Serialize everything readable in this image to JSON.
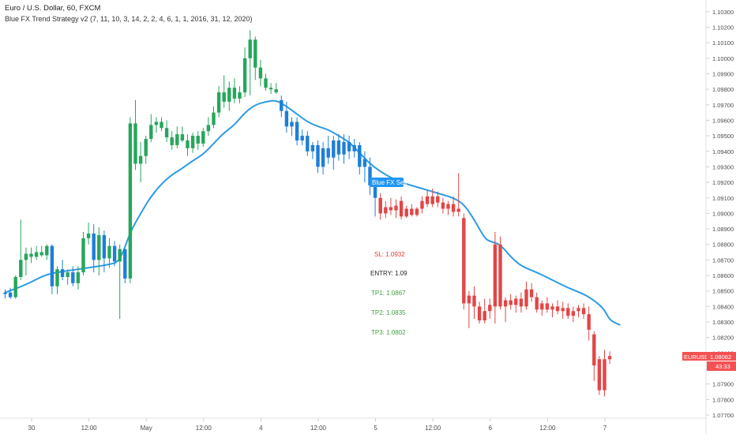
{
  "header": {
    "symbol_title": "Euro / U.S. Dollar, 60, FXCM",
    "indicator_title": "Blue FX Trend Strategy v2 (7, 11, 10, 3, 14, 2, 2, 4, 6, 1, 1, 2016, 31, 12, 2020)"
  },
  "colors": {
    "up": "#26a65b",
    "bull_blue": "#1e7ed8",
    "down": "#e24646",
    "ma": "#2c9be4",
    "axis_text": "#4a4a4a",
    "grid_border": "#e0e3eb",
    "signal_bg": "#2196f3",
    "sl_text": "#e53935",
    "entry_text": "#222222",
    "tp_text": "#43a047",
    "price_tag": "#f25254"
  },
  "signal": {
    "label": "Blue FX Sell"
  },
  "levels": {
    "sl": "SL: 1.0932",
    "entry": "ENTRY: 1.09",
    "tp1": "TP1: 1.0867",
    "tp2": "TP2: 1.0835",
    "tp3": "TP3: 1.0802"
  },
  "price_tag": {
    "symbol": "EURUSD",
    "price": "1.08082",
    "countdown": "43:33"
  },
  "chart_data": {
    "type": "candlestick",
    "ylim": [
      1.077,
      1.1035
    ],
    "y_ticks": [
      "1.10300",
      "1.10200",
      "1.10100",
      "1.10000",
      "1.09900",
      "1.09800",
      "1.09700",
      "1.09600",
      "1.09500",
      "1.09400",
      "1.09300",
      "1.09200",
      "1.09100",
      "1.09000",
      "1.08900",
      "1.08800",
      "1.08700",
      "1.08600",
      "1.08500",
      "1.08400",
      "1.08300",
      "1.08200",
      "1.08100",
      "1.08000",
      "1.07900",
      "1.07800",
      "1.07700"
    ],
    "x_ticks": [
      {
        "i": 5,
        "label": "30"
      },
      {
        "i": 16,
        "label": "12:00"
      },
      {
        "i": 27,
        "label": "May"
      },
      {
        "i": 38,
        "label": "12:00"
      },
      {
        "i": 49,
        "label": "4"
      },
      {
        "i": 60,
        "label": "12:00"
      },
      {
        "i": 71,
        "label": "5"
      },
      {
        "i": 82,
        "label": "12:00"
      },
      {
        "i": 93,
        "label": "6"
      },
      {
        "i": 104,
        "label": "12:00"
      },
      {
        "i": 115,
        "label": "7"
      }
    ],
    "candles": [
      {
        "o": 1.0848,
        "h": 1.0851,
        "l": 1.0845,
        "c": 1.0849,
        "t": "b"
      },
      {
        "o": 1.0849,
        "h": 1.0852,
        "l": 1.0845,
        "c": 1.0846,
        "t": "b"
      },
      {
        "o": 1.0846,
        "h": 1.086,
        "l": 1.0845,
        "c": 1.0859,
        "t": "g"
      },
      {
        "o": 1.0859,
        "h": 1.0896,
        "l": 1.0857,
        "c": 1.087,
        "t": "g"
      },
      {
        "o": 1.087,
        "h": 1.0878,
        "l": 1.086,
        "c": 1.0874,
        "t": "g"
      },
      {
        "o": 1.0874,
        "h": 1.0878,
        "l": 1.0868,
        "c": 1.0872,
        "t": "g"
      },
      {
        "o": 1.0872,
        "h": 1.0879,
        "l": 1.087,
        "c": 1.0875,
        "t": "g"
      },
      {
        "o": 1.0875,
        "h": 1.0879,
        "l": 1.0872,
        "c": 1.0873,
        "t": "g"
      },
      {
        "o": 1.0873,
        "h": 1.088,
        "l": 1.087,
        "c": 1.0879,
        "t": "g"
      },
      {
        "o": 1.0879,
        "h": 1.088,
        "l": 1.0848,
        "c": 1.0853,
        "t": "b"
      },
      {
        "o": 1.0853,
        "h": 1.0866,
        "l": 1.0848,
        "c": 1.0864,
        "t": "g"
      },
      {
        "o": 1.0864,
        "h": 1.087,
        "l": 1.0857,
        "c": 1.0859,
        "t": "b"
      },
      {
        "o": 1.0859,
        "h": 1.0864,
        "l": 1.0854,
        "c": 1.0862,
        "t": "g"
      },
      {
        "o": 1.0862,
        "h": 1.0866,
        "l": 1.0853,
        "c": 1.0855,
        "t": "b"
      },
      {
        "o": 1.0855,
        "h": 1.0866,
        "l": 1.0851,
        "c": 1.0862,
        "t": "g"
      },
      {
        "o": 1.0862,
        "h": 1.0888,
        "l": 1.086,
        "c": 1.0884,
        "t": "g"
      },
      {
        "o": 1.0884,
        "h": 1.0894,
        "l": 1.088,
        "c": 1.0887,
        "t": "g"
      },
      {
        "o": 1.0887,
        "h": 1.0893,
        "l": 1.0862,
        "c": 1.087,
        "t": "b"
      },
      {
        "o": 1.087,
        "h": 1.0891,
        "l": 1.086,
        "c": 1.0886,
        "t": "g"
      },
      {
        "o": 1.0886,
        "h": 1.0889,
        "l": 1.0862,
        "c": 1.0871,
        "t": "b"
      },
      {
        "o": 1.0871,
        "h": 1.0884,
        "l": 1.0865,
        "c": 1.0879,
        "t": "g"
      },
      {
        "o": 1.0879,
        "h": 1.0882,
        "l": 1.0866,
        "c": 1.0869,
        "t": "b"
      },
      {
        "o": 1.0869,
        "h": 1.088,
        "l": 1.0832,
        "c": 1.0877,
        "t": "g"
      },
      {
        "o": 1.0877,
        "h": 1.0877,
        "l": 1.0855,
        "c": 1.0858,
        "t": "b"
      },
      {
        "o": 1.0858,
        "h": 1.0962,
        "l": 1.0855,
        "c": 1.0958,
        "t": "g"
      },
      {
        "o": 1.0958,
        "h": 1.0973,
        "l": 1.0928,
        "c": 1.0932,
        "t": "g"
      },
      {
        "o": 1.0932,
        "h": 1.0946,
        "l": 1.092,
        "c": 1.0937,
        "t": "g"
      },
      {
        "o": 1.0937,
        "h": 1.095,
        "l": 1.0932,
        "c": 1.0948,
        "t": "g"
      },
      {
        "o": 1.0948,
        "h": 1.0964,
        "l": 1.0946,
        "c": 1.0957,
        "t": "g"
      },
      {
        "o": 1.0957,
        "h": 1.0962,
        "l": 1.0952,
        "c": 1.0959,
        "t": "g"
      },
      {
        "o": 1.0959,
        "h": 1.0962,
        "l": 1.0953,
        "c": 1.0955,
        "t": "g"
      },
      {
        "o": 1.0955,
        "h": 1.096,
        "l": 1.0946,
        "c": 1.0949,
        "t": "g"
      },
      {
        "o": 1.0949,
        "h": 1.0953,
        "l": 1.0941,
        "c": 1.0944,
        "t": "g"
      },
      {
        "o": 1.0944,
        "h": 1.0956,
        "l": 1.0942,
        "c": 1.0951,
        "t": "g"
      },
      {
        "o": 1.0951,
        "h": 1.0956,
        "l": 1.0946,
        "c": 1.0947,
        "t": "g"
      },
      {
        "o": 1.0947,
        "h": 1.0951,
        "l": 1.0937,
        "c": 1.0942,
        "t": "g"
      },
      {
        "o": 1.0942,
        "h": 1.0952,
        "l": 1.0939,
        "c": 1.095,
        "t": "g"
      },
      {
        "o": 1.095,
        "h": 1.0953,
        "l": 1.0941,
        "c": 1.0945,
        "t": "g"
      },
      {
        "o": 1.0945,
        "h": 1.0955,
        "l": 1.0943,
        "c": 1.0953,
        "t": "g"
      },
      {
        "o": 1.0953,
        "h": 1.0962,
        "l": 1.095,
        "c": 1.0957,
        "t": "g"
      },
      {
        "o": 1.0957,
        "h": 1.0969,
        "l": 1.0955,
        "c": 1.0965,
        "t": "g"
      },
      {
        "o": 1.0965,
        "h": 1.0982,
        "l": 1.0962,
        "c": 1.0978,
        "t": "g"
      },
      {
        "o": 1.0978,
        "h": 1.0989,
        "l": 1.0968,
        "c": 1.0972,
        "t": "g"
      },
      {
        "o": 1.0972,
        "h": 1.0985,
        "l": 1.0966,
        "c": 1.0981,
        "t": "g"
      },
      {
        "o": 1.0981,
        "h": 1.0987,
        "l": 1.0971,
        "c": 1.0974,
        "t": "g"
      },
      {
        "o": 1.0974,
        "h": 1.0982,
        "l": 1.0971,
        "c": 1.0978,
        "t": "g"
      },
      {
        "o": 1.0978,
        "h": 1.1007,
        "l": 1.0975,
        "c": 1.1,
        "t": "g"
      },
      {
        "o": 1.1,
        "h": 1.1018,
        "l": 1.0976,
        "c": 1.1012,
        "t": "g"
      },
      {
        "o": 1.1012,
        "h": 1.1014,
        "l": 1.0986,
        "c": 1.0994,
        "t": "g"
      },
      {
        "o": 1.0994,
        "h": 1.0999,
        "l": 1.0982,
        "c": 1.0987,
        "t": "g"
      },
      {
        "o": 1.0987,
        "h": 1.099,
        "l": 1.0979,
        "c": 1.0981,
        "t": "g"
      },
      {
        "o": 1.0981,
        "h": 1.0984,
        "l": 1.0977,
        "c": 1.098,
        "t": "g"
      },
      {
        "o": 1.098,
        "h": 1.0984,
        "l": 1.0977,
        "c": 1.0978,
        "t": "g"
      },
      {
        "o": 1.0973,
        "h": 1.0976,
        "l": 1.0962,
        "c": 1.0966,
        "t": "b"
      },
      {
        "o": 1.0966,
        "h": 1.0972,
        "l": 1.0952,
        "c": 1.0956,
        "t": "b"
      },
      {
        "o": 1.0956,
        "h": 1.0962,
        "l": 1.095,
        "c": 1.0959,
        "t": "b"
      },
      {
        "o": 1.0959,
        "h": 1.0962,
        "l": 1.0944,
        "c": 1.0947,
        "t": "b"
      },
      {
        "o": 1.0947,
        "h": 1.0954,
        "l": 1.0944,
        "c": 1.095,
        "t": "b"
      },
      {
        "o": 1.095,
        "h": 1.0953,
        "l": 1.0937,
        "c": 1.094,
        "t": "b"
      },
      {
        "o": 1.094,
        "h": 1.0946,
        "l": 1.0935,
        "c": 1.0944,
        "t": "b"
      },
      {
        "o": 1.0944,
        "h": 1.0947,
        "l": 1.0926,
        "c": 1.093,
        "t": "b"
      },
      {
        "o": 1.093,
        "h": 1.0946,
        "l": 1.0925,
        "c": 1.0942,
        "t": "b"
      },
      {
        "o": 1.0942,
        "h": 1.095,
        "l": 1.0932,
        "c": 1.0936,
        "t": "b"
      },
      {
        "o": 1.0936,
        "h": 1.095,
        "l": 1.0928,
        "c": 1.0947,
        "t": "b"
      },
      {
        "o": 1.0947,
        "h": 1.0951,
        "l": 1.0934,
        "c": 1.0938,
        "t": "b"
      },
      {
        "o": 1.0938,
        "h": 1.0951,
        "l": 1.0932,
        "c": 1.0946,
        "t": "b"
      },
      {
        "o": 1.0946,
        "h": 1.095,
        "l": 1.0935,
        "c": 1.094,
        "t": "b"
      },
      {
        "o": 1.094,
        "h": 1.0948,
        "l": 1.0936,
        "c": 1.0944,
        "t": "b"
      },
      {
        "o": 1.0944,
        "h": 1.0946,
        "l": 1.0925,
        "c": 1.093,
        "t": "b"
      },
      {
        "o": 1.093,
        "h": 1.094,
        "l": 1.092,
        "c": 1.0935,
        "t": "b"
      },
      {
        "o": 1.093,
        "h": 1.0936,
        "l": 1.0912,
        "c": 1.0918,
        "t": "b"
      },
      {
        "o": 1.0918,
        "h": 1.0922,
        "l": 1.0898,
        "c": 1.091,
        "t": "b"
      },
      {
        "o": 1.091,
        "h": 1.0913,
        "l": 1.0896,
        "c": 1.09,
        "t": "r"
      },
      {
        "o": 1.09,
        "h": 1.0908,
        "l": 1.0897,
        "c": 1.0904,
        "t": "r"
      },
      {
        "o": 1.0904,
        "h": 1.091,
        "l": 1.0899,
        "c": 1.0902,
        "t": "r"
      },
      {
        "o": 1.0902,
        "h": 1.0909,
        "l": 1.0897,
        "c": 1.0905,
        "t": "r"
      },
      {
        "o": 1.0908,
        "h": 1.0911,
        "l": 1.0896,
        "c": 1.0898,
        "t": "r"
      },
      {
        "o": 1.0898,
        "h": 1.0905,
        "l": 1.0897,
        "c": 1.0903,
        "t": "r"
      },
      {
        "o": 1.0903,
        "h": 1.0906,
        "l": 1.0898,
        "c": 1.0899,
        "t": "r"
      },
      {
        "o": 1.0899,
        "h": 1.0904,
        "l": 1.0898,
        "c": 1.0903,
        "t": "r"
      },
      {
        "o": 1.0903,
        "h": 1.0911,
        "l": 1.09,
        "c": 1.0908,
        "t": "r"
      },
      {
        "o": 1.0911,
        "h": 1.0915,
        "l": 1.0904,
        "c": 1.0906,
        "t": "r"
      },
      {
        "o": 1.0906,
        "h": 1.0916,
        "l": 1.0904,
        "c": 1.0911,
        "t": "r"
      },
      {
        "o": 1.0911,
        "h": 1.0914,
        "l": 1.0904,
        "c": 1.0907,
        "t": "r"
      },
      {
        "o": 1.0907,
        "h": 1.091,
        "l": 1.09,
        "c": 1.0903,
        "t": "r"
      },
      {
        "o": 1.0903,
        "h": 1.0908,
        "l": 1.0899,
        "c": 1.0906,
        "t": "r"
      },
      {
        "o": 1.0906,
        "h": 1.0911,
        "l": 1.0898,
        "c": 1.0901,
        "t": "r"
      },
      {
        "o": 1.0901,
        "h": 1.0926,
        "l": 1.0898,
        "c": 1.0903,
        "t": "r"
      },
      {
        "o": 1.0897,
        "h": 1.09,
        "l": 1.0838,
        "c": 1.0842,
        "t": "r"
      },
      {
        "o": 1.0842,
        "h": 1.085,
        "l": 1.0826,
        "c": 1.0847,
        "t": "r"
      },
      {
        "o": 1.0847,
        "h": 1.0853,
        "l": 1.0832,
        "c": 1.084,
        "t": "r"
      },
      {
        "o": 1.084,
        "h": 1.0843,
        "l": 1.0829,
        "c": 1.0831,
        "t": "r"
      },
      {
        "o": 1.0831,
        "h": 1.0845,
        "l": 1.0829,
        "c": 1.0837,
        "t": "r"
      },
      {
        "o": 1.0837,
        "h": 1.0845,
        "l": 1.0832,
        "c": 1.0841,
        "t": "r"
      },
      {
        "o": 1.084,
        "h": 1.0888,
        "l": 1.0829,
        "c": 1.088,
        "t": "r"
      },
      {
        "o": 1.088,
        "h": 1.0885,
        "l": 1.0838,
        "c": 1.084,
        "t": "r"
      },
      {
        "o": 1.084,
        "h": 1.0846,
        "l": 1.083,
        "c": 1.0844,
        "t": "r"
      },
      {
        "o": 1.0844,
        "h": 1.0848,
        "l": 1.0838,
        "c": 1.0841,
        "t": "r"
      },
      {
        "o": 1.0841,
        "h": 1.0847,
        "l": 1.0836,
        "c": 1.0845,
        "t": "r"
      },
      {
        "o": 1.0845,
        "h": 1.0849,
        "l": 1.0836,
        "c": 1.084,
        "t": "r"
      },
      {
        "o": 1.084,
        "h": 1.0856,
        "l": 1.0838,
        "c": 1.0851,
        "t": "r"
      },
      {
        "o": 1.0851,
        "h": 1.0855,
        "l": 1.0843,
        "c": 1.0846,
        "t": "r"
      },
      {
        "o": 1.0846,
        "h": 1.0849,
        "l": 1.0836,
        "c": 1.0838,
        "t": "r"
      },
      {
        "o": 1.0838,
        "h": 1.0844,
        "l": 1.0834,
        "c": 1.0842,
        "t": "r"
      },
      {
        "o": 1.0842,
        "h": 1.0846,
        "l": 1.0836,
        "c": 1.0838,
        "t": "r"
      },
      {
        "o": 1.0838,
        "h": 1.0842,
        "l": 1.0833,
        "c": 1.084,
        "t": "r"
      },
      {
        "o": 1.084,
        "h": 1.0844,
        "l": 1.0835,
        "c": 1.0837,
        "t": "r"
      },
      {
        "o": 1.0837,
        "h": 1.0843,
        "l": 1.0832,
        "c": 1.0839,
        "t": "r"
      },
      {
        "o": 1.0839,
        "h": 1.0842,
        "l": 1.0832,
        "c": 1.0834,
        "t": "r"
      },
      {
        "o": 1.0834,
        "h": 1.084,
        "l": 1.083,
        "c": 1.0837,
        "t": "r"
      },
      {
        "o": 1.0837,
        "h": 1.0841,
        "l": 1.0833,
        "c": 1.0839,
        "t": "r"
      },
      {
        "o": 1.0839,
        "h": 1.0842,
        "l": 1.0832,
        "c": 1.0835,
        "t": "r"
      },
      {
        "o": 1.0835,
        "h": 1.084,
        "l": 1.0818,
        "c": 1.0825,
        "t": "r"
      },
      {
        "o": 1.0822,
        "h": 1.0824,
        "l": 1.0792,
        "c": 1.0802,
        "t": "r"
      },
      {
        "o": 1.0806,
        "h": 1.0808,
        "l": 1.0783,
        "c": 1.0786,
        "t": "r"
      },
      {
        "o": 1.0786,
        "h": 1.0812,
        "l": 1.0782,
        "c": 1.0806,
        "t": "r"
      },
      {
        "o": 1.0806,
        "h": 1.0811,
        "l": 1.0803,
        "c": 1.0808,
        "t": "r"
      }
    ],
    "ma_line": [
      {
        "i": 0,
        "v": 1.0849
      },
      {
        "i": 4,
        "v": 1.0854
      },
      {
        "i": 8,
        "v": 1.0861
      },
      {
        "i": 12,
        "v": 1.0863
      },
      {
        "i": 16,
        "v": 1.0865
      },
      {
        "i": 20,
        "v": 1.0867
      },
      {
        "i": 22,
        "v": 1.0869
      },
      {
        "i": 24,
        "v": 1.0888
      },
      {
        "i": 26,
        "v": 1.09
      },
      {
        "i": 28,
        "v": 1.0911
      },
      {
        "i": 30,
        "v": 1.0919
      },
      {
        "i": 32,
        "v": 1.0925
      },
      {
        "i": 34,
        "v": 1.0929
      },
      {
        "i": 36,
        "v": 1.0934
      },
      {
        "i": 38,
        "v": 1.0938
      },
      {
        "i": 40,
        "v": 1.0945
      },
      {
        "i": 42,
        "v": 1.0952
      },
      {
        "i": 44,
        "v": 1.0957
      },
      {
        "i": 46,
        "v": 1.0965
      },
      {
        "i": 48,
        "v": 1.097
      },
      {
        "i": 50,
        "v": 1.0972
      },
      {
        "i": 52,
        "v": 1.0973
      },
      {
        "i": 54,
        "v": 1.0969
      },
      {
        "i": 56,
        "v": 1.0964
      },
      {
        "i": 58,
        "v": 1.0959
      },
      {
        "i": 60,
        "v": 1.0956
      },
      {
        "i": 62,
        "v": 1.0954
      },
      {
        "i": 64,
        "v": 1.095
      },
      {
        "i": 66,
        "v": 1.0946
      },
      {
        "i": 68,
        "v": 1.0939
      },
      {
        "i": 70,
        "v": 1.0932
      },
      {
        "i": 72,
        "v": 1.0927
      },
      {
        "i": 74,
        "v": 1.0923
      },
      {
        "i": 76,
        "v": 1.092
      },
      {
        "i": 78,
        "v": 1.0918
      },
      {
        "i": 80,
        "v": 1.0916
      },
      {
        "i": 82,
        "v": 1.0914
      },
      {
        "i": 84,
        "v": 1.0912
      },
      {
        "i": 86,
        "v": 1.091
      },
      {
        "i": 88,
        "v": 1.0906
      },
      {
        "i": 90,
        "v": 1.0896
      },
      {
        "i": 92,
        "v": 1.0884
      },
      {
        "i": 93,
        "v": 1.0882
      },
      {
        "i": 95,
        "v": 1.088
      },
      {
        "i": 97,
        "v": 1.0872
      },
      {
        "i": 99,
        "v": 1.0866
      },
      {
        "i": 102,
        "v": 1.0862
      },
      {
        "i": 105,
        "v": 1.0857
      },
      {
        "i": 108,
        "v": 1.0852
      },
      {
        "i": 111,
        "v": 1.0848
      },
      {
        "i": 113,
        "v": 1.0844
      },
      {
        "i": 115,
        "v": 1.0838
      },
      {
        "i": 116,
        "v": 1.0831
      },
      {
        "i": 118,
        "v": 1.0828
      }
    ]
  }
}
